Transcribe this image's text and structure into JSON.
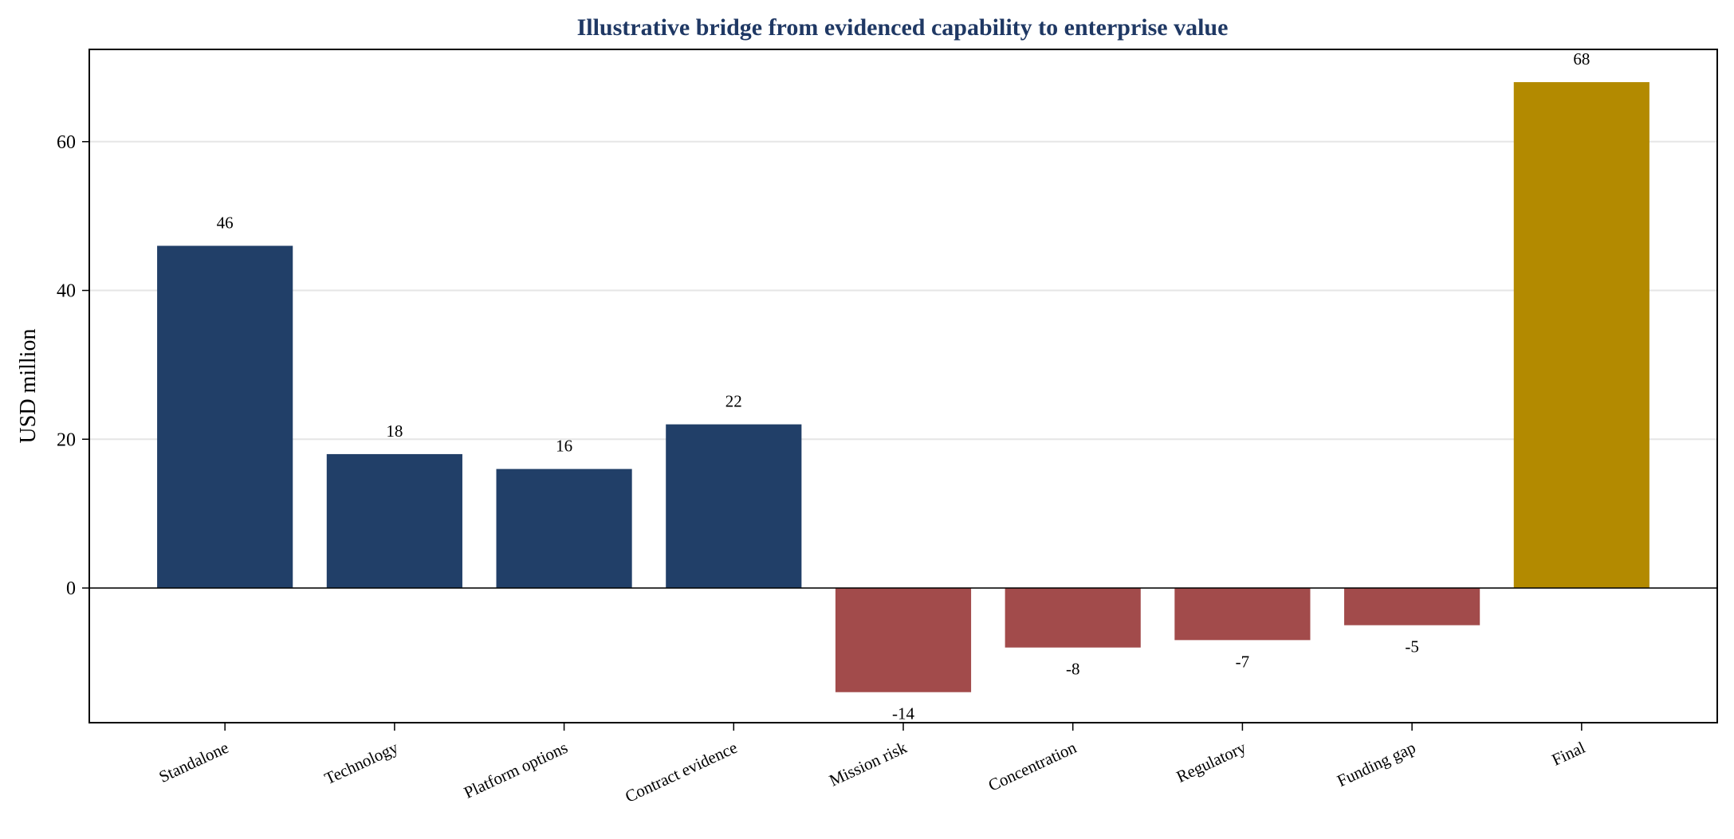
{
  "chart_data": {
    "type": "bar",
    "title": "Illustrative bridge from evidenced capability to enterprise value",
    "xlabel": "",
    "ylabel": "USD million",
    "categories": [
      "Standalone",
      "Technology",
      "Platform options",
      "Contract evidence",
      "Mission risk",
      "Concentration",
      "Regulatory",
      "Funding gap",
      "Final"
    ],
    "values": [
      46,
      18,
      16,
      22,
      -14,
      -8,
      -7,
      -5,
      68
    ],
    "data_labels": [
      "46",
      "18",
      "16",
      "22",
      "-14",
      "-8",
      "-7",
      "-5",
      "68"
    ],
    "ylim": [
      -18.1,
      72.4
    ],
    "yticks": [
      0,
      20,
      40,
      60
    ],
    "ytick_labels": [
      "0",
      "20",
      "40",
      "60"
    ],
    "grid": "horizontal",
    "zero_line": true,
    "colors": {
      "positive": "#213f68",
      "negative": "#a24b4b",
      "final": "#b38a00",
      "title": "#1f3864"
    }
  }
}
